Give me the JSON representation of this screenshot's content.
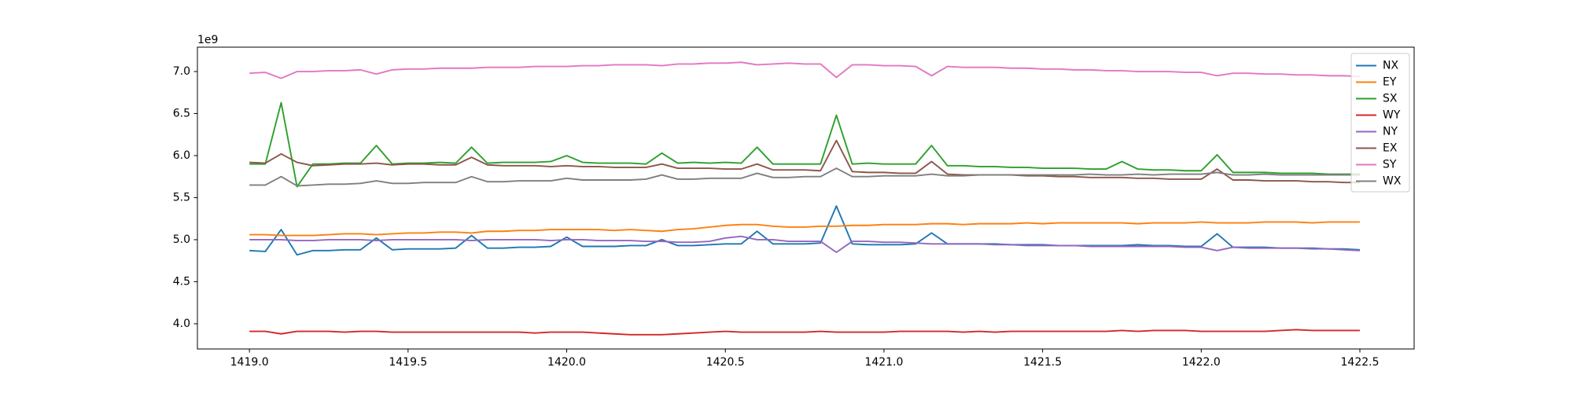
{
  "chart_data": {
    "type": "line",
    "y_offset_label": "1e9",
    "xlim": [
      1418.836,
      1422.671
    ],
    "xticks": [
      {
        "value": 1419.0,
        "label": "1419.0"
      },
      {
        "value": 1419.5,
        "label": "1419.5"
      },
      {
        "value": 1420.0,
        "label": "1420.0"
      },
      {
        "value": 1420.5,
        "label": "1420.5"
      },
      {
        "value": 1421.0,
        "label": "1421.0"
      },
      {
        "value": 1421.5,
        "label": "1421.5"
      },
      {
        "value": 1422.0,
        "label": "1422.0"
      },
      {
        "value": 1422.5,
        "label": "1422.5"
      }
    ],
    "ylim": [
      3.7,
      7.29
    ],
    "yticks": [
      {
        "value": 4,
        "label": "4.0"
      },
      4.5,
      {
        "value": 5,
        "label": "5.0"
      },
      5.5,
      {
        "value": 6,
        "label": "6.0"
      },
      6.5,
      {
        "value": 7,
        "label": "7.0"
      }
    ],
    "legend": "upper right",
    "x": [
      1419.0,
      1419.05,
      1419.1,
      1419.15,
      1419.2,
      1419.25,
      1419.3,
      1419.35,
      1419.4,
      1419.45,
      1419.5,
      1419.55,
      1419.6,
      1419.65,
      1419.7,
      1419.75,
      1419.8,
      1419.85,
      1419.9,
      1419.95,
      1420.0,
      1420.05,
      1420.1,
      1420.15,
      1420.2,
      1420.25,
      1420.3,
      1420.35,
      1420.4,
      1420.45,
      1420.5,
      1420.55,
      1420.6,
      1420.65,
      1420.7,
      1420.75,
      1420.8,
      1420.85,
      1420.9,
      1420.95,
      1421.0,
      1421.05,
      1421.1,
      1421.15,
      1421.2,
      1421.25,
      1421.3,
      1421.35,
      1421.4,
      1421.45,
      1421.5,
      1421.55,
      1421.6,
      1421.65,
      1421.7,
      1421.75,
      1421.8,
      1421.85,
      1421.9,
      1421.95,
      1422.0,
      1422.05,
      1422.1,
      1422.15,
      1422.2,
      1422.25,
      1422.3,
      1422.35,
      1422.4,
      1422.45,
      1422.5
    ],
    "series": [
      {
        "name": "NX",
        "color": "#1f77b4",
        "values": [
          4.87,
          4.86,
          5.12,
          4.82,
          4.87,
          4.87,
          4.88,
          4.88,
          5.02,
          4.88,
          4.89,
          4.89,
          4.89,
          4.9,
          5.05,
          4.9,
          4.9,
          4.91,
          4.91,
          4.92,
          5.03,
          4.92,
          4.92,
          4.92,
          4.93,
          4.93,
          5.0,
          4.93,
          4.93,
          4.94,
          4.95,
          4.95,
          5.1,
          4.95,
          4.95,
          4.95,
          4.96,
          5.4,
          4.95,
          4.94,
          4.94,
          4.94,
          4.95,
          5.08,
          4.95,
          4.95,
          4.95,
          4.95,
          4.94,
          4.94,
          4.94,
          4.93,
          4.93,
          4.93,
          4.93,
          4.93,
          4.94,
          4.93,
          4.93,
          4.92,
          4.92,
          5.07,
          4.91,
          4.91,
          4.91,
          4.9,
          4.9,
          4.9,
          4.89,
          4.89,
          4.88
        ]
      },
      {
        "name": "EY",
        "color": "#ff7f0e",
        "values": [
          5.06,
          5.06,
          5.05,
          5.05,
          5.05,
          5.06,
          5.07,
          5.07,
          5.06,
          5.07,
          5.08,
          5.08,
          5.09,
          5.09,
          5.08,
          5.1,
          5.1,
          5.11,
          5.11,
          5.12,
          5.12,
          5.12,
          5.12,
          5.11,
          5.12,
          5.11,
          5.1,
          5.12,
          5.13,
          5.15,
          5.17,
          5.18,
          5.18,
          5.16,
          5.15,
          5.15,
          5.16,
          5.16,
          5.17,
          5.17,
          5.18,
          5.18,
          5.18,
          5.19,
          5.19,
          5.18,
          5.19,
          5.19,
          5.19,
          5.2,
          5.19,
          5.2,
          5.2,
          5.2,
          5.2,
          5.2,
          5.19,
          5.2,
          5.2,
          5.2,
          5.21,
          5.2,
          5.2,
          5.2,
          5.21,
          5.21,
          5.21,
          5.2,
          5.21,
          5.21,
          5.21
        ]
      },
      {
        "name": "SX",
        "color": "#2ca02c",
        "values": [
          5.9,
          5.9,
          6.63,
          5.63,
          5.9,
          5.9,
          5.91,
          5.91,
          6.12,
          5.9,
          5.91,
          5.91,
          5.92,
          5.91,
          6.1,
          5.91,
          5.92,
          5.92,
          5.92,
          5.93,
          6.0,
          5.92,
          5.91,
          5.91,
          5.91,
          5.9,
          6.03,
          5.91,
          5.92,
          5.91,
          5.92,
          5.91,
          6.1,
          5.9,
          5.9,
          5.9,
          5.9,
          6.48,
          5.9,
          5.91,
          5.9,
          5.9,
          5.9,
          6.12,
          5.88,
          5.88,
          5.87,
          5.87,
          5.86,
          5.86,
          5.85,
          5.85,
          5.85,
          5.84,
          5.84,
          5.93,
          5.84,
          5.83,
          5.83,
          5.82,
          5.82,
          6.01,
          5.8,
          5.8,
          5.8,
          5.79,
          5.79,
          5.79,
          5.78,
          5.78,
          5.78
        ]
      },
      {
        "name": "WY",
        "color": "#d62728",
        "values": [
          3.91,
          3.91,
          3.88,
          3.91,
          3.91,
          3.91,
          3.9,
          3.91,
          3.91,
          3.9,
          3.9,
          3.9,
          3.9,
          3.9,
          3.9,
          3.9,
          3.9,
          3.9,
          3.89,
          3.9,
          3.9,
          3.9,
          3.89,
          3.88,
          3.87,
          3.87,
          3.87,
          3.88,
          3.89,
          3.9,
          3.91,
          3.9,
          3.9,
          3.9,
          3.9,
          3.9,
          3.91,
          3.9,
          3.9,
          3.9,
          3.9,
          3.91,
          3.91,
          3.91,
          3.91,
          3.9,
          3.91,
          3.9,
          3.91,
          3.91,
          3.91,
          3.91,
          3.91,
          3.91,
          3.91,
          3.92,
          3.91,
          3.92,
          3.92,
          3.92,
          3.91,
          3.91,
          3.91,
          3.91,
          3.91,
          3.92,
          3.93,
          3.92,
          3.92,
          3.92,
          3.92
        ]
      },
      {
        "name": "NY",
        "color": "#9467bd",
        "values": [
          5.0,
          5.0,
          5.0,
          4.99,
          4.99,
          5.0,
          5.0,
          5.0,
          4.99,
          5.0,
          5.0,
          5.0,
          5.0,
          5.0,
          4.99,
          5.0,
          5.0,
          5.0,
          5.0,
          4.99,
          5.0,
          5.0,
          4.99,
          4.99,
          4.99,
          4.98,
          4.98,
          4.97,
          4.97,
          4.98,
          5.02,
          5.04,
          5.0,
          5.0,
          4.98,
          4.98,
          4.98,
          4.85,
          4.98,
          4.98,
          4.97,
          4.97,
          4.96,
          4.95,
          4.95,
          4.95,
          4.95,
          4.94,
          4.94,
          4.93,
          4.93,
          4.93,
          4.93,
          4.92,
          4.92,
          4.92,
          4.92,
          4.92,
          4.92,
          4.91,
          4.91,
          4.87,
          4.91,
          4.9,
          4.9,
          4.9,
          4.9,
          4.89,
          4.89,
          4.88,
          4.87
        ]
      },
      {
        "name": "EX",
        "color": "#8c564b",
        "values": [
          5.92,
          5.91,
          6.02,
          5.92,
          5.88,
          5.89,
          5.9,
          5.9,
          5.91,
          5.89,
          5.9,
          5.9,
          5.89,
          5.89,
          5.98,
          5.89,
          5.88,
          5.88,
          5.88,
          5.87,
          5.88,
          5.87,
          5.87,
          5.86,
          5.86,
          5.86,
          5.9,
          5.85,
          5.85,
          5.85,
          5.84,
          5.84,
          5.9,
          5.83,
          5.83,
          5.83,
          5.82,
          6.18,
          5.81,
          5.8,
          5.8,
          5.79,
          5.79,
          5.93,
          5.78,
          5.77,
          5.77,
          5.77,
          5.77,
          5.76,
          5.76,
          5.75,
          5.75,
          5.74,
          5.74,
          5.74,
          5.73,
          5.73,
          5.72,
          5.72,
          5.72,
          5.84,
          5.71,
          5.71,
          5.7,
          5.7,
          5.7,
          5.69,
          5.69,
          5.68,
          5.68
        ]
      },
      {
        "name": "SY",
        "color": "#e377c2",
        "values": [
          6.98,
          6.99,
          6.92,
          7.0,
          7.0,
          7.01,
          7.01,
          7.02,
          6.97,
          7.02,
          7.03,
          7.03,
          7.04,
          7.04,
          7.04,
          7.05,
          7.05,
          7.05,
          7.06,
          7.06,
          7.06,
          7.07,
          7.07,
          7.08,
          7.08,
          7.08,
          7.07,
          7.09,
          7.09,
          7.1,
          7.1,
          7.11,
          7.08,
          7.09,
          7.1,
          7.09,
          7.09,
          6.93,
          7.08,
          7.08,
          7.07,
          7.07,
          7.06,
          6.95,
          7.06,
          7.05,
          7.05,
          7.05,
          7.04,
          7.04,
          7.03,
          7.03,
          7.02,
          7.02,
          7.01,
          7.01,
          7.0,
          7.0,
          7.0,
          6.99,
          6.99,
          6.95,
          6.98,
          6.98,
          6.97,
          6.97,
          6.96,
          6.96,
          6.95,
          6.95,
          6.94
        ]
      },
      {
        "name": "WX",
        "color": "#7f7f7f",
        "values": [
          5.65,
          5.65,
          5.75,
          5.64,
          5.65,
          5.66,
          5.66,
          5.67,
          5.7,
          5.67,
          5.67,
          5.68,
          5.68,
          5.68,
          5.75,
          5.69,
          5.69,
          5.7,
          5.7,
          5.7,
          5.73,
          5.71,
          5.71,
          5.71,
          5.71,
          5.72,
          5.77,
          5.72,
          5.72,
          5.73,
          5.73,
          5.73,
          5.79,
          5.74,
          5.74,
          5.75,
          5.75,
          5.85,
          5.75,
          5.75,
          5.76,
          5.76,
          5.76,
          5.78,
          5.76,
          5.76,
          5.77,
          5.77,
          5.77,
          5.77,
          5.77,
          5.77,
          5.77,
          5.78,
          5.77,
          5.77,
          5.78,
          5.77,
          5.78,
          5.78,
          5.78,
          5.8,
          5.77,
          5.77,
          5.78,
          5.77,
          5.77,
          5.77,
          5.77,
          5.77,
          5.77
        ]
      }
    ]
  }
}
